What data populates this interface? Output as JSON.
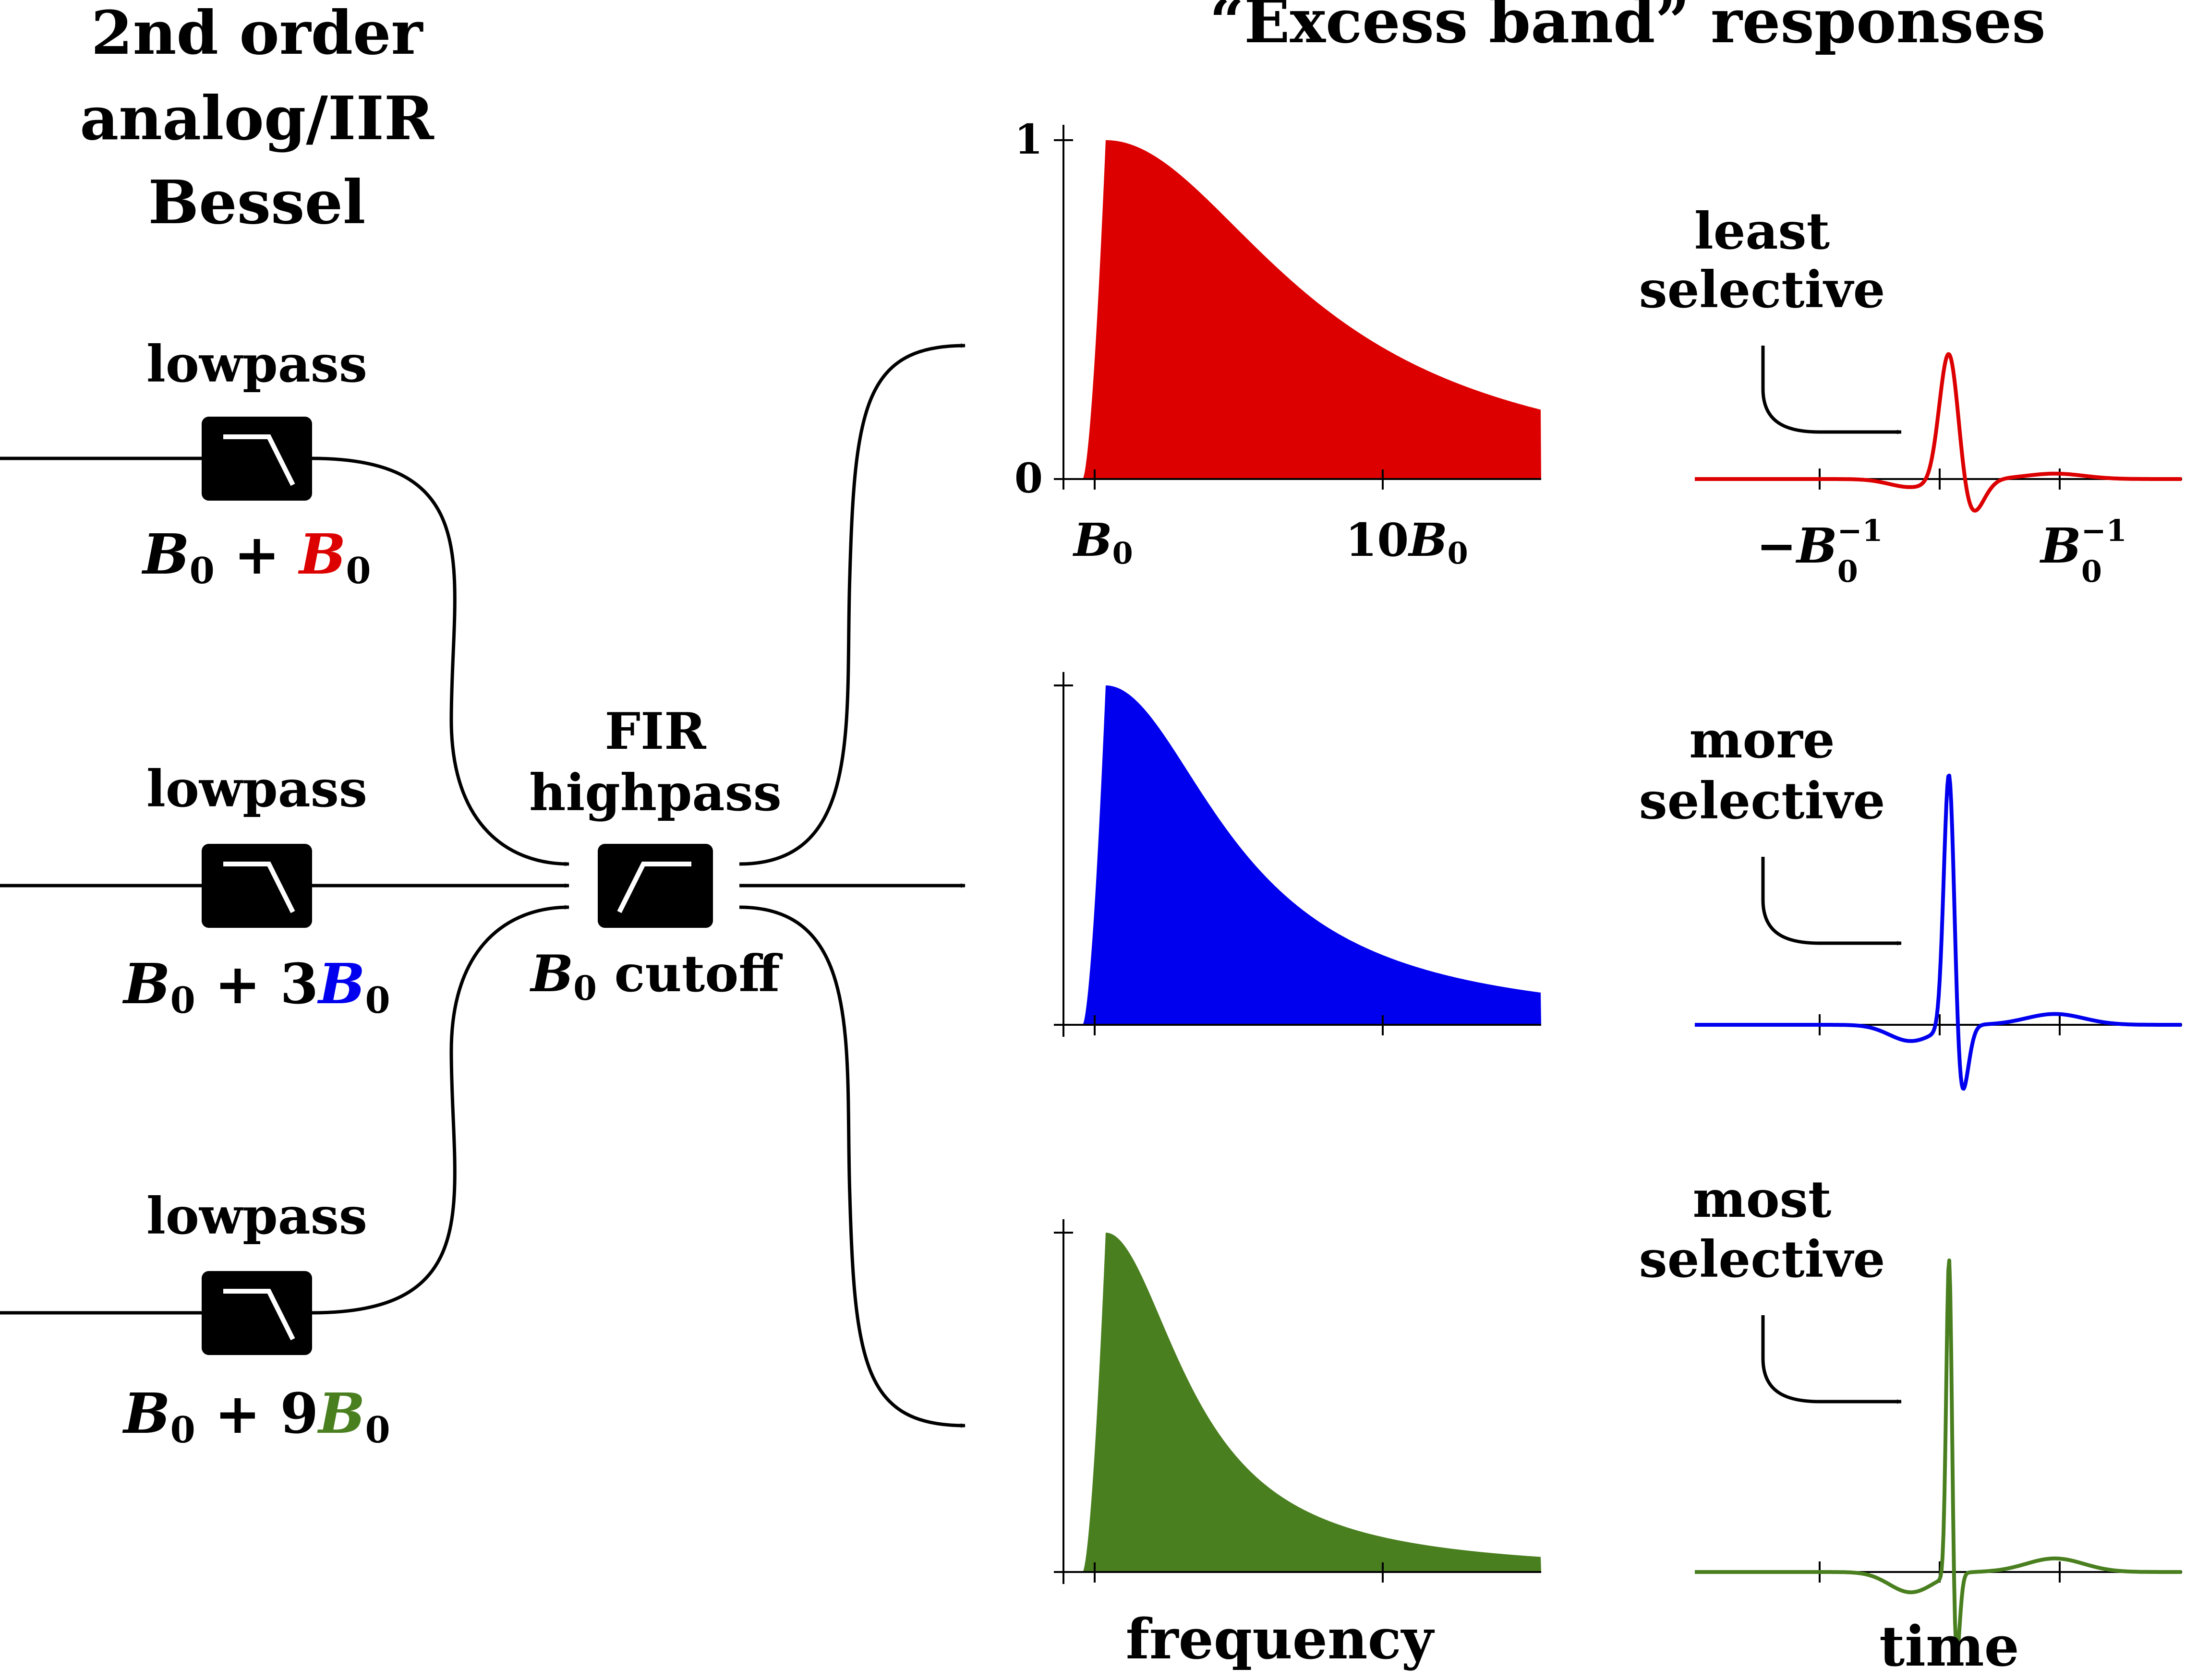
{
  "title_left": [
    "2nd order",
    "analog/IIR",
    "Bessel"
  ],
  "title_right": "“Excess band” responses",
  "colors": {
    "red": "#dd0000",
    "blue": "#0000ee",
    "green": "#4a7f20",
    "ink": "#000000"
  },
  "lowpass": [
    {
      "label": "lowpass",
      "eq_base": "B",
      "eq_sub": "0",
      "eq_op": " + ",
      "eq_coef": "",
      "eq_var": "B",
      "eq_var_sub": "0",
      "color": "#dd0000"
    },
    {
      "label": "lowpass",
      "eq_base": "B",
      "eq_sub": "0",
      "eq_op": " + ",
      "eq_coef": "3",
      "eq_var": "B",
      "eq_var_sub": "0",
      "color": "#0000ee"
    },
    {
      "label": "lowpass",
      "eq_base": "B",
      "eq_sub": "0",
      "eq_op": " + ",
      "eq_coef": "9",
      "eq_var": "B",
      "eq_var_sub": "0",
      "color": "#4a7f20"
    }
  ],
  "fir": {
    "line1": "FIR",
    "line2": "highpass",
    "cut_var": "B",
    "cut_sub": "0",
    "cut_text": " cutoff"
  },
  "freq_axis": {
    "y_tick_labels": [
      "1",
      "0"
    ],
    "x_tick1": {
      "var": "B",
      "sub": "0"
    },
    "x_tick2": {
      "coef": "10",
      "var": "B",
      "sub": "0"
    },
    "xlabel": "frequency"
  },
  "time_axis": {
    "x_tick1": {
      "minus": "−",
      "var": "B",
      "sub": "0",
      "sup": "−1"
    },
    "x_tick2": {
      "var": "B",
      "sub": "0",
      "sup": "−1"
    },
    "xlabel": "time"
  },
  "annotations": [
    {
      "line1": "least",
      "line2": "selective"
    },
    {
      "line1": "more",
      "line2": "selective"
    },
    {
      "line1": "most",
      "line2": "selective"
    }
  ],
  "chart_data": [
    {
      "type": "area",
      "name": "frequency-response-red",
      "shape": "peaked-decay",
      "peak_x": 0.47,
      "ylim": [
        0,
        1
      ],
      "color": "#dd0000"
    },
    {
      "type": "area",
      "name": "frequency-response-blue",
      "shape": "peaked-decay",
      "peak_x": 0.3,
      "ylim": [
        0,
        1
      ],
      "color": "#0000ee"
    },
    {
      "type": "area",
      "name": "frequency-response-green",
      "shape": "peaked-decay",
      "peak_x": 0.2,
      "ylim": [
        0,
        1
      ],
      "color": "#4a7f20"
    },
    {
      "type": "line",
      "name": "impulse-response-red",
      "peak_ratio": 0.4,
      "color": "#dd0000"
    },
    {
      "type": "line",
      "name": "impulse-response-blue",
      "peak_ratio": 0.8,
      "color": "#0000ee"
    },
    {
      "type": "line",
      "name": "impulse-response-green",
      "peak_ratio": 1.0,
      "color": "#4a7f20"
    }
  ]
}
